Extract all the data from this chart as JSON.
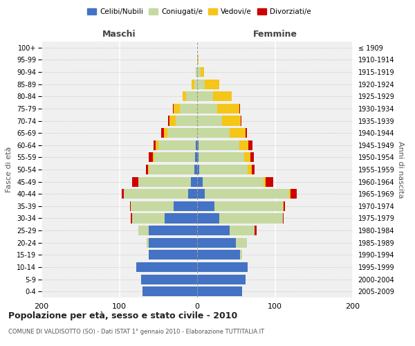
{
  "age_groups": [
    "0-4",
    "5-9",
    "10-14",
    "15-19",
    "20-24",
    "25-29",
    "30-34",
    "35-39",
    "40-44",
    "45-49",
    "50-54",
    "55-59",
    "60-64",
    "65-69",
    "70-74",
    "75-79",
    "80-84",
    "85-89",
    "90-94",
    "95-99",
    "100+"
  ],
  "birth_years": [
    "2005-2009",
    "2000-2004",
    "1995-1999",
    "1990-1994",
    "1985-1989",
    "1980-1984",
    "1975-1979",
    "1970-1974",
    "1965-1969",
    "1960-1964",
    "1955-1959",
    "1950-1954",
    "1945-1949",
    "1940-1944",
    "1935-1939",
    "1930-1934",
    "1925-1929",
    "1920-1924",
    "1915-1919",
    "1910-1914",
    "≤ 1909"
  ],
  "males": {
    "celibe": [
      70,
      72,
      78,
      62,
      62,
      62,
      42,
      30,
      12,
      8,
      4,
      3,
      2,
      0,
      0,
      0,
      0,
      0,
      0,
      0,
      0
    ],
    "coniugato": [
      0,
      0,
      0,
      0,
      3,
      14,
      42,
      55,
      82,
      68,
      58,
      52,
      48,
      38,
      28,
      22,
      14,
      4,
      2,
      0,
      0
    ],
    "vedovo": [
      0,
      0,
      0,
      0,
      0,
      0,
      0,
      0,
      0,
      0,
      1,
      2,
      3,
      5,
      8,
      8,
      5,
      3,
      0,
      0,
      0
    ],
    "divorziato": [
      0,
      0,
      0,
      0,
      0,
      0,
      1,
      1,
      3,
      8,
      3,
      5,
      3,
      3,
      1,
      1,
      0,
      0,
      0,
      0,
      0
    ]
  },
  "females": {
    "nubile": [
      58,
      62,
      65,
      55,
      50,
      42,
      28,
      22,
      10,
      7,
      3,
      2,
      2,
      0,
      0,
      0,
      0,
      0,
      0,
      0,
      0
    ],
    "coniugata": [
      0,
      0,
      0,
      3,
      14,
      32,
      82,
      88,
      108,
      78,
      62,
      58,
      52,
      42,
      32,
      26,
      20,
      10,
      4,
      1,
      0
    ],
    "vedova": [
      0,
      0,
      0,
      0,
      0,
      0,
      0,
      1,
      2,
      3,
      5,
      8,
      12,
      20,
      24,
      28,
      24,
      18,
      5,
      1,
      0
    ],
    "divorziata": [
      0,
      0,
      0,
      0,
      0,
      2,
      1,
      2,
      8,
      10,
      4,
      5,
      5,
      2,
      1,
      1,
      0,
      0,
      0,
      0,
      0
    ]
  },
  "colors": {
    "celibe": "#4472c4",
    "coniugato": "#c5d9a0",
    "vedovo": "#f5c518",
    "divorziato": "#cc0000"
  },
  "title": "Popolazione per età, sesso e stato civile - 2010",
  "subtitle": "COMUNE DI VALDISOTTO (SO) - Dati ISTAT 1° gennaio 2010 - Elaborazione TUTTITALIA.IT",
  "xlabel_maschi": "Maschi",
  "xlabel_femmine": "Femmine",
  "ylabel_left": "Fasce di età",
  "ylabel_right": "Anni di nascita",
  "xlim": 200,
  "bg_color": "#f0f0f0",
  "legend_labels": [
    "Celibi/Nubili",
    "Coniugati/e",
    "Vedovi/e",
    "Divorziati/e"
  ]
}
